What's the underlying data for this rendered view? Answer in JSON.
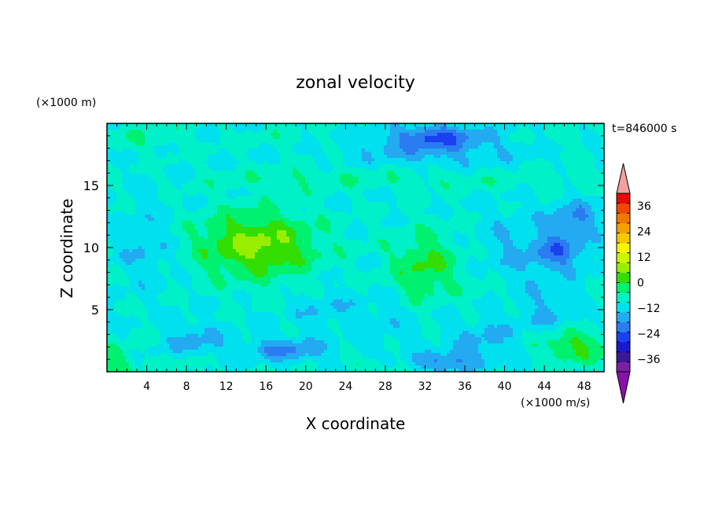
{
  "chart_data": {
    "type": "heatmap",
    "title": "zonal velocity",
    "xlabel": "X coordinate",
    "ylabel": "Z coordinate",
    "x_unit_label": "(×1000 m/s)",
    "y_unit_label": "(×1000 m)",
    "time_label": "t=846000 s",
    "xlim": [
      0,
      50
    ],
    "ylim": [
      0,
      20
    ],
    "x_ticks": [
      4,
      8,
      12,
      16,
      20,
      24,
      28,
      32,
      36,
      40,
      44,
      48
    ],
    "y_ticks": [
      5,
      10,
      15
    ],
    "grid": false,
    "colorbar": {
      "min": -42,
      "max": 42,
      "step": 6,
      "tick_labels": [
        36,
        24,
        12,
        0,
        -12,
        -24,
        -36
      ],
      "extend": "both",
      "colors": [
        "#7a1fa2",
        "#3a1899",
        "#1a1acc",
        "#1a40f0",
        "#2a7cf0",
        "#23aaf0",
        "#00e0ee",
        "#00f0c8",
        "#00f070",
        "#33dd00",
        "#99ee00",
        "#ccf500",
        "#f5f500",
        "#f5c800",
        "#f5a000",
        "#f07800",
        "#f04800",
        "#e80a0a"
      ],
      "under_color": "#8811aa",
      "over_color": "#f5a0a0"
    },
    "field_features": [
      {
        "x": 15,
        "z": 10.2,
        "u": 20,
        "sx": 6,
        "sz": 2.7
      },
      {
        "x": 32,
        "z": 8.6,
        "u": 13,
        "sx": 3.5,
        "sz": 2.8
      },
      {
        "x": 47,
        "z": 2,
        "u": 14,
        "sx": 3.5,
        "sz": 1.3
      },
      {
        "x": 1,
        "z": 0.8,
        "u": 9,
        "sx": 2,
        "sz": 1.4
      },
      {
        "x": 8,
        "z": 0.6,
        "u": 6,
        "sx": 1.5,
        "sz": 0.8
      },
      {
        "x": 26,
        "z": 0.6,
        "u": 6,
        "sx": 1.8,
        "sz": 0.7
      },
      {
        "x": 38,
        "z": 6.5,
        "u": 3,
        "sx": 2,
        "sz": 1.6
      },
      {
        "x": 18,
        "z": 1.8,
        "u": -13,
        "sx": 4,
        "sz": 0.9
      },
      {
        "x": 34,
        "z": 0.8,
        "u": -14,
        "sx": 3,
        "sz": 0.8
      },
      {
        "x": 38,
        "z": 2.5,
        "u": -8,
        "sx": 3,
        "sz": 1.6
      },
      {
        "x": 9,
        "z": 2.5,
        "u": -8,
        "sx": 3,
        "sz": 1.5
      },
      {
        "x": 45.5,
        "z": 9.6,
        "u": -14,
        "sx": 2.5,
        "sz": 1.5
      },
      {
        "x": 47,
        "z": 12.3,
        "u": -12,
        "sx": 2.5,
        "sz": 1.5
      },
      {
        "x": 41,
        "z": 10,
        "u": -6,
        "sx": 4,
        "sz": 3
      },
      {
        "x": 33,
        "z": 19,
        "u": -16,
        "sx": 4.5,
        "sz": 0.9
      },
      {
        "x": 33,
        "z": 17.8,
        "u": -9,
        "sx": 8,
        "sz": 1.2
      },
      {
        "x": 4,
        "z": 10,
        "u": -6,
        "sx": 3,
        "sz": 3
      },
      {
        "x": 20,
        "z": 15.6,
        "u": 5,
        "sx": 10,
        "sz": 0.9
      },
      {
        "x": 35,
        "z": 15.4,
        "u": 4,
        "sx": 8,
        "sz": 0.8
      },
      {
        "x": 46,
        "z": 15.5,
        "u": 4,
        "sx": 5,
        "sz": 0.8
      },
      {
        "x": 3,
        "z": 18.8,
        "u": 5,
        "sx": 6,
        "sz": 1
      },
      {
        "x": 18,
        "z": 18.8,
        "u": 3,
        "sx": 5,
        "sz": 0.8
      },
      {
        "x": 47,
        "z": 19,
        "u": 2,
        "sx": 3,
        "sz": 1
      },
      {
        "x": 22,
        "z": 5,
        "u": -5,
        "sx": 4,
        "sz": 1.5
      },
      {
        "x": 28,
        "z": 4,
        "u": -4,
        "sx": 3,
        "sz": 2
      },
      {
        "x": 44,
        "z": 5,
        "u": -6,
        "sx": 3,
        "sz": 2
      }
    ]
  }
}
